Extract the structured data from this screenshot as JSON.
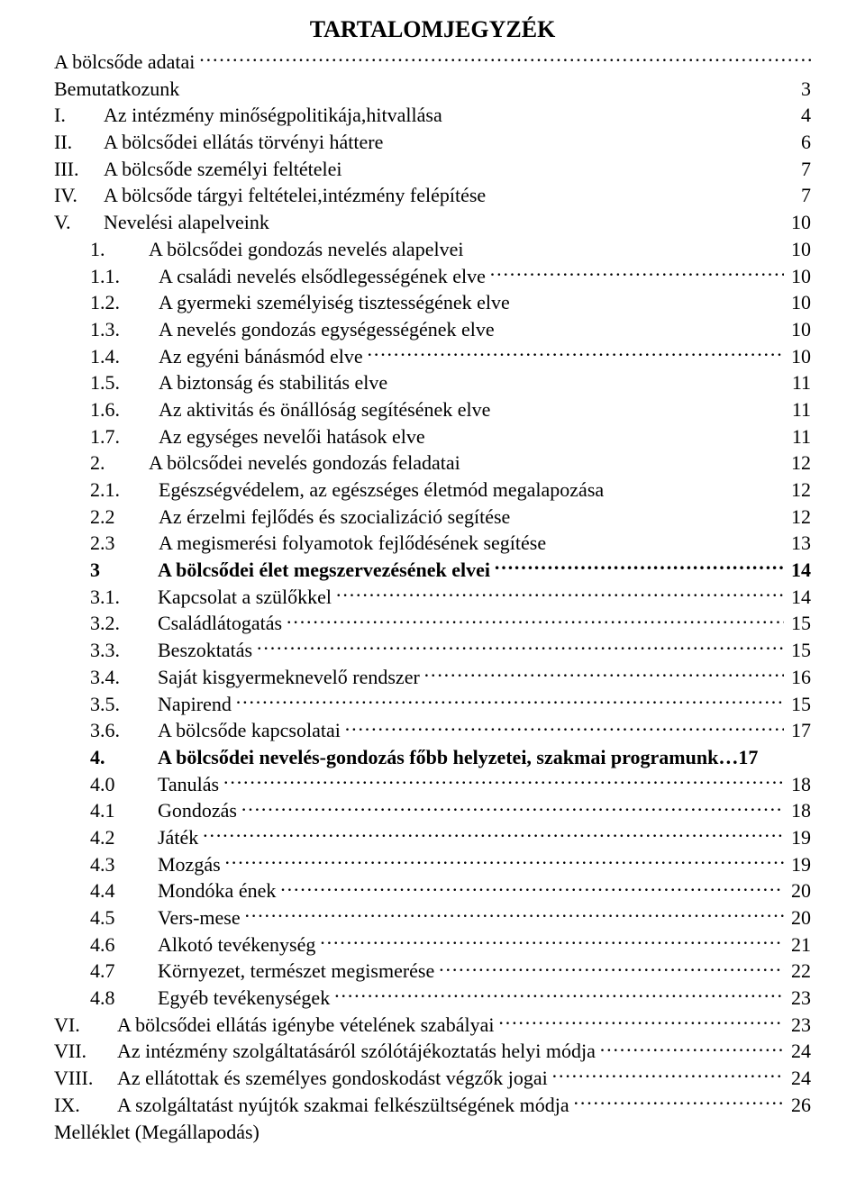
{
  "title": "TARTALOMJEGYZÉK",
  "lines": [
    {
      "indent": "indent-0",
      "num": "",
      "label": "A bölcsőde adatai",
      "leader": true,
      "page": "",
      "bold": false
    },
    {
      "indent": "indent-0",
      "num": "",
      "label": "Bemutatkozunk",
      "leader": false,
      "page": "3",
      "bold": false
    },
    {
      "indent": "indent-1",
      "num": "I.",
      "label": "Az  intézmény minőségpolitikája,hitvallása",
      "leader": false,
      "page": "4",
      "bold": false
    },
    {
      "indent": "indent-1",
      "num": "II.",
      "label": "A bölcsődei ellátás törvényi háttere",
      "leader": false,
      "page": "6",
      "bold": false
    },
    {
      "indent": "indent-1",
      "num": "III.",
      "label": "A bölcsőde személyi feltételei",
      "leader": false,
      "page": "7",
      "bold": false
    },
    {
      "indent": "indent-1",
      "num": "IV.",
      "label": "A bölcsőde tárgyi feltételei,intézmény felépítése",
      "leader": false,
      "page": "7",
      "bold": false
    },
    {
      "indent": "indent-1",
      "num": "V.",
      "label": "Nevelési  alapelveink",
      "leader": false,
      "page": "10",
      "bold": false
    },
    {
      "indent": "indent-2b",
      "num": "1.",
      "label": "A bölcsődei gondozás nevelés alapelvei",
      "leader": false,
      "page": "10",
      "bold": false
    },
    {
      "indent": "indent-2c",
      "num": "1.1.",
      "label": "A családi nevelés elsődlegességének elve",
      "leader": true,
      "page": "10",
      "bold": false
    },
    {
      "indent": "indent-2c",
      "num": "1.2.",
      "label": "A gyermeki személyiség tisztességének elve",
      "leader": false,
      "page": "10",
      "bold": false
    },
    {
      "indent": "indent-2c",
      "num": "1.3.",
      "label": "A nevelés gondozás egységességének elve",
      "leader": false,
      "page": "10",
      "bold": false
    },
    {
      "indent": "indent-2c",
      "num": "1.4.",
      "label": "Az egyéni bánásmód elve",
      "leader": true,
      "page": "10",
      "bold": false
    },
    {
      "indent": "indent-2c",
      "num": "1.5.",
      "label": "A biztonság és stabilitás elve",
      "leader": false,
      "page": "11",
      "bold": false
    },
    {
      "indent": "indent-2c",
      "num": "1.6.",
      "label": "Az aktivitás és önállóság segítésének elve",
      "leader": false,
      "page": "11",
      "bold": false
    },
    {
      "indent": "indent-2c",
      "num": "1.7.",
      "label": "Az egységes nevelői hatások elve",
      "leader": false,
      "page": "11",
      "bold": false
    },
    {
      "indent": "indent-2b",
      "num": "2.",
      "label": "A bölcsődei nevelés gondozás feladatai",
      "leader": false,
      "page": "12",
      "bold": false
    },
    {
      "indent": "indent-2c",
      "num": "2.1.",
      "label": "Egészségvédelem, az egészséges életmód megalapozása",
      "leader": false,
      "page": "12",
      "bold": false
    },
    {
      "indent": "indent-2c",
      "num": "2.2",
      "label": "Az érzelmi fejlődés és szocializáció segítése",
      "leader": false,
      "page": "12",
      "bold": false
    },
    {
      "indent": "indent-2c",
      "num": "2.3",
      "label": "A megismerési folyamotok fejlődésének segítése",
      "leader": false,
      "page": "13",
      "bold": false
    },
    {
      "indent": "indent-3",
      "num": "3",
      "label": "A bölcsődei élet megszervezésének elvei",
      "leader": true,
      "page": "14",
      "bold": true
    },
    {
      "indent": "indent-3",
      "num": "3.1.",
      "label": "Kapcsolat a szülőkkel",
      "leader": true,
      "page": "14",
      "bold": false
    },
    {
      "indent": "indent-3",
      "num": "3.2.",
      "label": "Családlátogatás",
      "leader": true,
      "page": "15",
      "bold": false
    },
    {
      "indent": "indent-3",
      "num": "3.3.",
      "label": "Beszoktatás",
      "leader": true,
      "page": "15",
      "bold": false
    },
    {
      "indent": "indent-3",
      "num": "3.4.",
      "label": "Saját kisgyermeknevelő rendszer",
      "leader": true,
      "page": "16",
      "bold": false
    },
    {
      "indent": "indent-3",
      "num": "3.5.",
      "label": "Napirend",
      "leader": true,
      "page": "15",
      "bold": false
    },
    {
      "indent": "indent-3",
      "num": "3.6.",
      "label": "A bölcsőde kapcsolatai",
      "leader": true,
      "page": "17",
      "bold": false
    },
    {
      "indent": "indent-3",
      "num": "4.",
      "label": "A bölcsődei nevelés-gondozás főbb helyzetei, szakmai programunk…17",
      "leader": false,
      "page": "",
      "bold": true
    },
    {
      "indent": "indent-3",
      "num": "4.0",
      "label": "Tanulás",
      "leader": true,
      "page": "18",
      "bold": false
    },
    {
      "indent": "indent-3",
      "num": "4.1",
      "label": " Gondozás",
      "leader": true,
      "page": "18",
      "bold": false
    },
    {
      "indent": "indent-3",
      "num": "4.2",
      "label": " Játék",
      "leader": true,
      "page": "19",
      "bold": false
    },
    {
      "indent": "indent-3",
      "num": "4.3",
      "label": " Mozgás",
      "leader": true,
      "page": "19",
      "bold": false
    },
    {
      "indent": "indent-3",
      "num": "4.4",
      "label": " Mondóka ének",
      "leader": true,
      "page": "20",
      "bold": false
    },
    {
      "indent": "indent-3",
      "num": "4.5",
      "label": " Vers-mese",
      "leader": true,
      "page": "20",
      "bold": false
    },
    {
      "indent": "indent-3",
      "num": "4.6",
      "label": "  Alkotó tevékenység",
      "leader": true,
      "page": "21",
      "bold": false
    },
    {
      "indent": "indent-3",
      "num": "4.7",
      "label": " Környezet, természet megismerése",
      "leader": true,
      "page": "22",
      "bold": false
    },
    {
      "indent": "indent-3",
      "num": "4.8",
      "label": " Egyéb tevékenységek",
      "leader": true,
      "page": "23",
      "bold": false
    },
    {
      "indent": "roman-start",
      "num": "VI.",
      "label": "A bölcsődei ellátás igénybe vételének szabályai",
      "leader": true,
      "page": "23",
      "bold": false
    },
    {
      "indent": "roman-start",
      "num": "VII.",
      "label": "Az intézmény szolgáltatásáról szólótájékoztatás helyi módja",
      "leader": true,
      "page": "24",
      "bold": false
    },
    {
      "indent": "roman-start",
      "num": "VIII.",
      "label": "Az ellátottak és személyes gondoskodást végzők jogai",
      "leader": true,
      "page": "24",
      "bold": false
    },
    {
      "indent": "roman-start",
      "num": "IX.",
      "label": "A szolgáltatást nyújtók szakmai felkészültségének módja",
      "leader": true,
      "page": "26",
      "bold": false
    },
    {
      "indent": "indent-0",
      "num": "",
      "label": "Melléklet (Megállapodás)",
      "leader": false,
      "page": "",
      "bold": false
    }
  ]
}
